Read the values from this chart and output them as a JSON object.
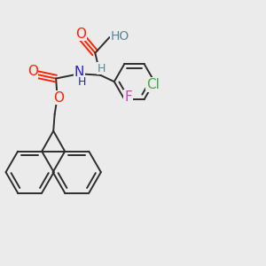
{
  "bg_color": "#ebebeb",
  "bond_color": "#2d2d2d",
  "bond_width": 1.4,
  "atom_colors": {
    "O": "#ff2200",
    "N": "#2222cc",
    "F": "#cc44bb",
    "Cl": "#44aa44",
    "HO": "#558899",
    "H": "#558899",
    "C": "#2d2d2d"
  }
}
